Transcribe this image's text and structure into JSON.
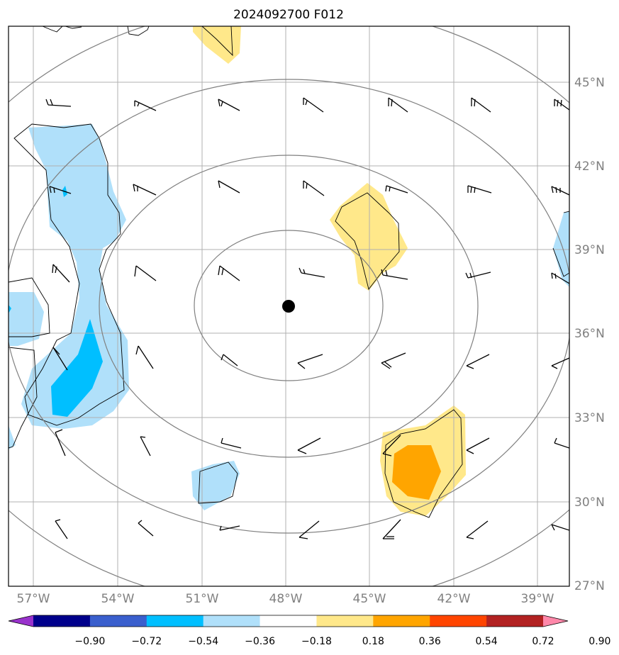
{
  "title": "2024092700 F012",
  "map": {
    "center_marker": {
      "lat": 37.0,
      "lon": -48.0
    },
    "lon_labels": [
      "57°W",
      "54°W",
      "51°W",
      "48°W",
      "45°W",
      "42°W",
      "39°W"
    ],
    "lat_labels": [
      "45°N",
      "42°N",
      "39°N",
      "36°N",
      "33°N",
      "30°N",
      "27°N"
    ],
    "range_rings": "concentric gray circles around center",
    "colors": {
      "ring": "#808080",
      "grid": "#b0b0b0",
      "barb": "#000000"
    }
  },
  "colorbar": {
    "tick_labels": [
      "−0.90",
      "−0.72",
      "−0.54",
      "−0.36",
      "−0.18",
      "0.18",
      "0.36",
      "0.54",
      "0.72",
      "0.90"
    ],
    "colors": [
      "#9932cc",
      "#00008b",
      "#3a5fcd",
      "#00bfff",
      "#b0e0fa",
      "#ffffff",
      "#ffe88a",
      "#ffa500",
      "#ff4500",
      "#b22222",
      "#ff88aa"
    ]
  }
}
